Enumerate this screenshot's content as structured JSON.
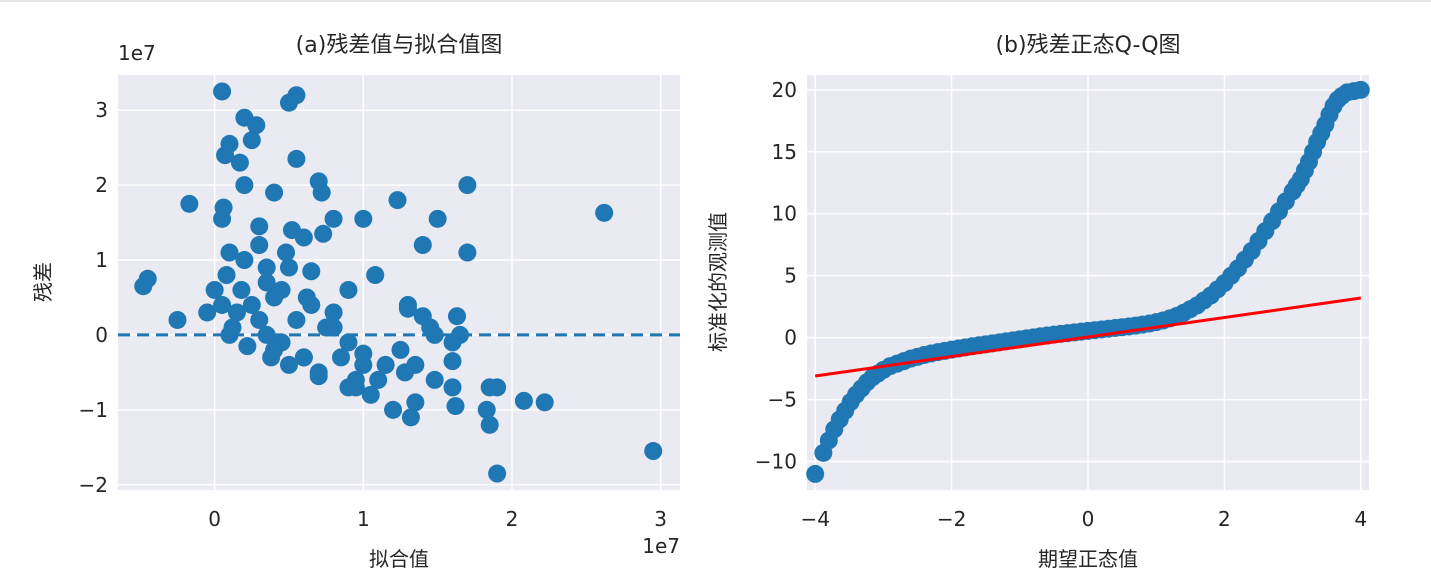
{
  "chart_data": [
    {
      "type": "scatter",
      "title": "(a)残差值与拟合值图",
      "xlabel": "拟合值",
      "ylabel": "残差",
      "x_offset_label": "1e7",
      "y_offset_label": "1e7",
      "xlim": [
        -0.65,
        3.13
      ],
      "ylim": [
        -2.07,
        3.47
      ],
      "xticks": [
        0,
        1,
        2,
        3
      ],
      "yticks": [
        -2,
        -1,
        0,
        1,
        2,
        3
      ],
      "xtick_labels": [
        "0",
        "1",
        "2",
        "3"
      ],
      "ytick_labels": [
        "−2",
        "−1",
        "0",
        "1",
        "2",
        "3"
      ],
      "grid": true,
      "point_color": "#1f77b4",
      "reference_line": {
        "y": 0,
        "style": "dashed",
        "color": "#1f77b4"
      },
      "series": [
        {
          "x": [
            0.05,
            0.2,
            0.1,
            0.55,
            0.5,
            0.28,
            0.07,
            0.55,
            0.25,
            0.17,
            0.05,
            0.4,
            0.7,
            0.72,
            1.0,
            1.7,
            1.23,
            2.62,
            0.06,
            0.73,
            0.52,
            0.3,
            0.2,
            -0.17,
            -0.48,
            -0.45,
            -0.25,
            1.4,
            1.3,
            1.63,
            1.7,
            0.8,
            1.08,
            0.65,
            0.9,
            1.3,
            1.4,
            1.5,
            1.0,
            1.15,
            1.85,
            2.22,
            1.83,
            1.9,
            2.08,
            1.6,
            1.28,
            1.35,
            1.32,
            1.48,
            1.6,
            1.62,
            1.65,
            1.25,
            1.35,
            0.95,
            1.45,
            1.48,
            1.6,
            1.9,
            2.95,
            1.85,
            0.4,
            0.35,
            0.15,
            0.12,
            0.3,
            0.45,
            0.6,
            0.5,
            0.18,
            0.25,
            0.35,
            0.08,
            0.1,
            0.8,
            0.9,
            1.0,
            1.1,
            0.7,
            0.6,
            0.4,
            0.55,
            0.3,
            0.2,
            0.45,
            0.65,
            0.75,
            0.85,
            0.95,
            0.6,
            0.05,
            0.0,
            -0.05,
            0.1,
            0.22,
            0.38,
            0.5,
            0.7,
            0.9,
            1.05,
            1.2,
            0.35,
            0.48,
            0.62,
            0.8
          ],
          "y": [
            3.25,
            2.9,
            2.55,
            3.2,
            3.1,
            2.8,
            2.4,
            2.35,
            2.6,
            2.3,
            1.55,
            1.9,
            2.05,
            1.9,
            1.55,
            2.0,
            1.8,
            1.63,
            1.7,
            1.35,
            1.4,
            1.45,
            2.0,
            1.75,
            0.65,
            0.75,
            0.2,
            0.25,
            0.35,
            0.25,
            1.1,
            1.55,
            0.8,
            0.85,
            0.6,
            0.4,
            1.2,
            1.55,
            -0.25,
            -0.4,
            -0.7,
            -0.9,
            -1.0,
            -0.7,
            -0.88,
            -0.35,
            -0.5,
            -0.9,
            -1.1,
            -0.6,
            -0.7,
            -0.95,
            0.0,
            -0.2,
            -0.4,
            -0.6,
            0.1,
            0.0,
            -0.1,
            -1.85,
            -1.55,
            -1.2,
            0.5,
            0.7,
            0.3,
            0.1,
            0.2,
            -0.1,
            -0.3,
            0.9,
            0.6,
            0.4,
            0.0,
            0.8,
            1.1,
            0.3,
            -0.1,
            -0.4,
            -0.6,
            -0.5,
            -0.3,
            -0.2,
            0.2,
            1.2,
            1.0,
            0.6,
            0.4,
            0.1,
            -0.3,
            -0.7,
            1.3,
            0.4,
            0.6,
            0.3,
            0.0,
            -0.15,
            -0.3,
            -0.4,
            -0.55,
            -0.7,
            -0.8,
            -1.0,
            0.9,
            1.1,
            0.5,
            0.1
          ]
        }
      ]
    },
    {
      "type": "scatter",
      "title": "(b)残差正态Q-Q图",
      "xlabel": "期望正态值",
      "ylabel": "标准化的观测值",
      "xlim": [
        -4.12,
        4.12
      ],
      "ylim": [
        -12.3,
        21.2
      ],
      "xticks": [
        -4,
        -2,
        0,
        2,
        4
      ],
      "yticks": [
        -10,
        -5,
        0,
        5,
        10,
        15,
        20
      ],
      "xtick_labels": [
        "−4",
        "−2",
        "0",
        "2",
        "4"
      ],
      "ytick_labels": [
        "−10",
        "−5",
        "0",
        "5",
        "10",
        "15",
        "20"
      ],
      "grid": true,
      "point_color": "#1f77b4",
      "reference_line": {
        "x": [
          -4.0,
          4.0
        ],
        "y": [
          -3.1,
          3.2
        ],
        "color": "#ff0000"
      },
      "series": [
        {
          "x": [
            -4.0,
            -3.88,
            -3.8,
            -3.72,
            -3.64,
            -3.56,
            -3.48,
            -3.4,
            -3.32,
            -3.24,
            -3.16,
            -3.08,
            -3.0,
            -2.9,
            -2.8,
            -2.7,
            -2.6,
            -2.5,
            -2.4,
            -2.3,
            -2.2,
            -2.1,
            -2.0,
            -1.9,
            -1.8,
            -1.7,
            -1.6,
            -1.5,
            -1.4,
            -1.3,
            -1.2,
            -1.1,
            -1.0,
            -0.9,
            -0.8,
            -0.7,
            -0.6,
            -0.5,
            -0.4,
            -0.3,
            -0.2,
            -0.1,
            0.0,
            0.1,
            0.2,
            0.3,
            0.4,
            0.5,
            0.6,
            0.7,
            0.8,
            0.9,
            1.0,
            1.1,
            1.2,
            1.3,
            1.4,
            1.5,
            1.6,
            1.7,
            1.8,
            1.9,
            2.0,
            2.1,
            2.2,
            2.3,
            2.4,
            2.5,
            2.6,
            2.7,
            2.8,
            2.9,
            3.0,
            3.06,
            3.12,
            3.18,
            3.24,
            3.3,
            3.36,
            3.42,
            3.48,
            3.54,
            3.6,
            3.66,
            3.72,
            3.8,
            3.9,
            4.0
          ],
          "y": [
            -11.0,
            -9.3,
            -8.3,
            -7.4,
            -6.6,
            -5.9,
            -5.2,
            -4.6,
            -4.1,
            -3.6,
            -3.2,
            -2.9,
            -2.6,
            -2.3,
            -2.1,
            -1.9,
            -1.7,
            -1.55,
            -1.4,
            -1.28,
            -1.17,
            -1.07,
            -0.97,
            -0.88,
            -0.79,
            -0.7,
            -0.62,
            -0.54,
            -0.46,
            -0.38,
            -0.3,
            -0.22,
            -0.14,
            -0.06,
            0.02,
            0.1,
            0.17,
            0.24,
            0.3,
            0.36,
            0.42,
            0.48,
            0.54,
            0.6,
            0.66,
            0.72,
            0.78,
            0.84,
            0.9,
            0.97,
            1.05,
            1.14,
            1.25,
            1.38,
            1.55,
            1.75,
            2.0,
            2.3,
            2.6,
            3.0,
            3.4,
            3.9,
            4.4,
            5.0,
            5.6,
            6.3,
            7.0,
            7.8,
            8.6,
            9.4,
            10.2,
            11.0,
            11.8,
            12.3,
            12.8,
            13.5,
            14.2,
            15.0,
            15.8,
            16.5,
            17.2,
            18.0,
            18.7,
            19.2,
            19.5,
            19.8,
            19.9,
            20.0
          ]
        }
      ]
    }
  ]
}
